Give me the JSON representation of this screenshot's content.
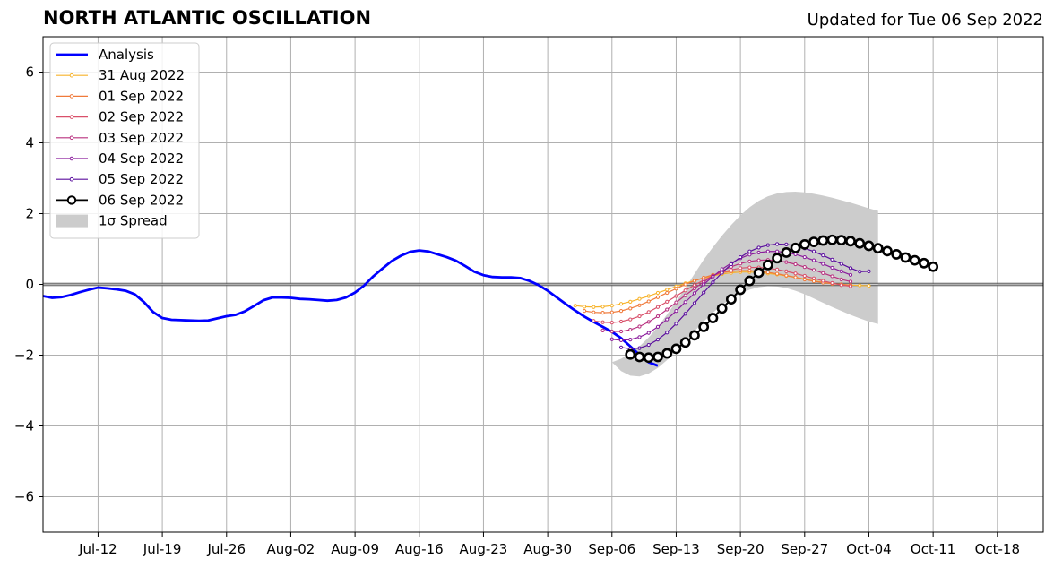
{
  "header": {
    "title": "NORTH ATLANTIC OSCILLATION",
    "updated": "Updated for Tue 06 Sep 2022"
  },
  "chart_data": {
    "type": "line",
    "title": "NORTH ATLANTIC OSCILLATION",
    "subtitle": "Updated for Tue 06 Sep 2022",
    "xlabel": "",
    "ylabel": "",
    "x_axis": "date",
    "xlim": [
      "2022-07-06",
      "2022-10-23"
    ],
    "ylim": [
      -7,
      7
    ],
    "grid": true,
    "legend_position": "top-left",
    "x_ticks": [
      {
        "date": "2022-07-12",
        "label": "Jul-12"
      },
      {
        "date": "2022-07-19",
        "label": "Jul-19"
      },
      {
        "date": "2022-07-26",
        "label": "Jul-26"
      },
      {
        "date": "2022-08-02",
        "label": "Aug-02"
      },
      {
        "date": "2022-08-09",
        "label": "Aug-09"
      },
      {
        "date": "2022-08-16",
        "label": "Aug-16"
      },
      {
        "date": "2022-08-23",
        "label": "Aug-23"
      },
      {
        "date": "2022-08-30",
        "label": "Aug-30"
      },
      {
        "date": "2022-09-06",
        "label": "Sep-06"
      },
      {
        "date": "2022-09-13",
        "label": "Sep-13"
      },
      {
        "date": "2022-09-20",
        "label": "Sep-20"
      },
      {
        "date": "2022-09-27",
        "label": "Sep-27"
      },
      {
        "date": "2022-10-04",
        "label": "Oct-04"
      },
      {
        "date": "2022-10-11",
        "label": "Oct-11"
      },
      {
        "date": "2022-10-18",
        "label": "Oct-18"
      }
    ],
    "y_ticks": [
      {
        "value": 6,
        "label": "6"
      },
      {
        "value": 4,
        "label": "4"
      },
      {
        "value": 2,
        "label": "2"
      },
      {
        "value": 0,
        "label": "0"
      },
      {
        "value": -2,
        "label": "−2"
      },
      {
        "value": -4,
        "label": "−4"
      },
      {
        "value": -6,
        "label": "−6"
      }
    ],
    "analysis": {
      "name": "Analysis",
      "color": "#0000ff",
      "start_date": "2022-07-06",
      "values": [
        -0.33,
        -0.38,
        -0.36,
        -0.3,
        -0.22,
        -0.15,
        -0.09,
        -0.11,
        -0.14,
        -0.18,
        -0.28,
        -0.5,
        -0.78,
        -0.95,
        -1,
        -1.01,
        -1.02,
        -1.03,
        -1.02,
        -0.96,
        -0.9,
        -0.86,
        -0.76,
        -0.61,
        -0.45,
        -0.37,
        -0.37,
        -0.38,
        -0.41,
        -0.42,
        -0.44,
        -0.46,
        -0.44,
        -0.37,
        -0.23,
        -0.03,
        0.23,
        0.45,
        0.66,
        0.81,
        0.92,
        0.96,
        0.93,
        0.85,
        0.77,
        0.67,
        0.52,
        0.36,
        0.26,
        0.21,
        0.2,
        0.2,
        0.18,
        0.1,
        -0.02,
        -0.18,
        -0.37,
        -0.56,
        -0.74,
        -0.91,
        -1.06,
        -1.2,
        -1.34,
        -1.52,
        -1.75,
        -1.99,
        -2.2,
        -2.3
      ]
    },
    "forecasts": [
      {
        "name": "31 Aug 2022",
        "color": "#f7b32b",
        "start_date": "2022-09-02",
        "values": [
          -0.6,
          -0.63,
          -0.64,
          -0.63,
          -0.6,
          -0.55,
          -0.49,
          -0.41,
          -0.33,
          -0.24,
          -0.15,
          -0.06,
          0.03,
          0.11,
          0.18,
          0.24,
          0.29,
          0.33,
          0.35,
          0.35,
          0.34,
          0.31,
          0.28,
          0.24,
          0.2,
          0.15,
          0.1,
          0.06,
          0.02,
          0,
          -0.02,
          -0.03,
          -0.04
        ]
      },
      {
        "name": "01 Sep 2022",
        "color": "#f07a3a",
        "start_date": "2022-09-03",
        "values": [
          -0.75,
          -0.79,
          -0.8,
          -0.79,
          -0.75,
          -0.68,
          -0.59,
          -0.48,
          -0.36,
          -0.24,
          -0.12,
          0,
          0.1,
          0.19,
          0.27,
          0.33,
          0.37,
          0.39,
          0.39,
          0.37,
          0.34,
          0.3,
          0.25,
          0.2,
          0.14,
          0.09,
          0.05,
          0.02,
          0,
          -0.02
        ]
      },
      {
        "name": "02 Sep 2022",
        "color": "#d9506a",
        "start_date": "2022-09-04",
        "values": [
          -1.03,
          -1.07,
          -1.08,
          -1.05,
          -0.99,
          -0.9,
          -0.78,
          -0.64,
          -0.49,
          -0.33,
          -0.17,
          -0.02,
          0.12,
          0.24,
          0.34,
          0.41,
          0.46,
          0.48,
          0.48,
          0.46,
          0.42,
          0.37,
          0.31,
          0.24,
          0.17,
          0.1,
          0.04,
          -0.02,
          -0.05
        ]
      },
      {
        "name": "03 Sep 2022",
        "color": "#b8307f",
        "start_date": "2022-09-05",
        "values": [
          -1.3,
          -1.33,
          -1.33,
          -1.28,
          -1.19,
          -1.06,
          -0.9,
          -0.71,
          -0.51,
          -0.31,
          -0.11,
          0.07,
          0.24,
          0.38,
          0.5,
          0.59,
          0.65,
          0.68,
          0.69,
          0.67,
          0.63,
          0.57,
          0.49,
          0.41,
          0.32,
          0.23,
          0.14,
          0.08
        ]
      },
      {
        "name": "04 Sep 2022",
        "color": "#8b1c9c",
        "start_date": "2022-09-06",
        "values": [
          -1.55,
          -1.58,
          -1.56,
          -1.49,
          -1.37,
          -1.2,
          -0.99,
          -0.75,
          -0.5,
          -0.25,
          0,
          0.22,
          0.43,
          0.6,
          0.74,
          0.84,
          0.9,
          0.93,
          0.93,
          0.9,
          0.85,
          0.77,
          0.68,
          0.58,
          0.47,
          0.37,
          0.27
        ]
      },
      {
        "name": "05 Sep 2022",
        "color": "#5b0f9e",
        "start_date": "2022-09-07",
        "values": [
          -1.78,
          -1.82,
          -1.8,
          -1.71,
          -1.56,
          -1.36,
          -1.11,
          -0.83,
          -0.53,
          -0.23,
          0.06,
          0.33,
          0.57,
          0.77,
          0.93,
          1.04,
          1.11,
          1.14,
          1.13,
          1.09,
          1.02,
          0.93,
          0.82,
          0.7,
          0.58,
          0.46,
          0.36,
          0.37
        ]
      },
      {
        "name": "06 Sep 2022",
        "color": "#000000",
        "start_date": "2022-09-08",
        "values": [
          -1.98,
          -2.05,
          -2.07,
          -2.05,
          -1.95,
          -1.82,
          -1.64,
          -1.44,
          -1.2,
          -0.95,
          -0.68,
          -0.42,
          -0.15,
          0.1,
          0.33,
          0.55,
          0.74,
          0.9,
          1.03,
          1.13,
          1.2,
          1.24,
          1.26,
          1.25,
          1.22,
          1.16,
          1.09,
          1.02,
          0.94,
          0.85,
          0.76,
          0.68,
          0.6,
          0.5
        ]
      }
    ],
    "spread": {
      "name": "1σ Spread",
      "color": "#cccccc",
      "start_date": "2022-09-06",
      "upper": [
        -2.2,
        -2.1,
        -1.95,
        -1.75,
        -1.5,
        -1.2,
        -0.85,
        -0.48,
        -0.1,
        0.3,
        0.7,
        1.05,
        1.38,
        1.68,
        1.95,
        2.18,
        2.36,
        2.49,
        2.57,
        2.61,
        2.62,
        2.6,
        2.56,
        2.51,
        2.45,
        2.38,
        2.31,
        2.23,
        2.15,
        2.08
      ],
      "lower": [
        -2.2,
        -2.45,
        -2.58,
        -2.6,
        -2.52,
        -2.36,
        -2.14,
        -1.88,
        -1.6,
        -1.32,
        -1.05,
        -0.8,
        -0.58,
        -0.4,
        -0.26,
        -0.15,
        -0.08,
        -0.05,
        -0.06,
        -0.1,
        -0.18,
        -0.28,
        -0.4,
        -0.52,
        -0.64,
        -0.75,
        -0.86,
        -0.96,
        -1.05,
        -1.12
      ]
    },
    "legend": [
      {
        "label": "Analysis",
        "kind": "analysis",
        "color": "#0000ff"
      },
      {
        "label": "31 Aug 2022",
        "kind": "forecast",
        "color": "#f7b32b"
      },
      {
        "label": "01 Sep 2022",
        "kind": "forecast",
        "color": "#f07a3a"
      },
      {
        "label": "02 Sep 2022",
        "kind": "forecast",
        "color": "#d9506a"
      },
      {
        "label": "03 Sep 2022",
        "kind": "forecast",
        "color": "#b8307f"
      },
      {
        "label": "04 Sep 2022",
        "kind": "forecast",
        "color": "#8b1c9c"
      },
      {
        "label": "05 Sep 2022",
        "kind": "forecast",
        "color": "#5b0f9e"
      },
      {
        "label": "06 Sep 2022",
        "kind": "latest",
        "color": "#000000"
      },
      {
        "label": "1σ Spread",
        "kind": "spread",
        "color": "#cccccc"
      }
    ]
  }
}
